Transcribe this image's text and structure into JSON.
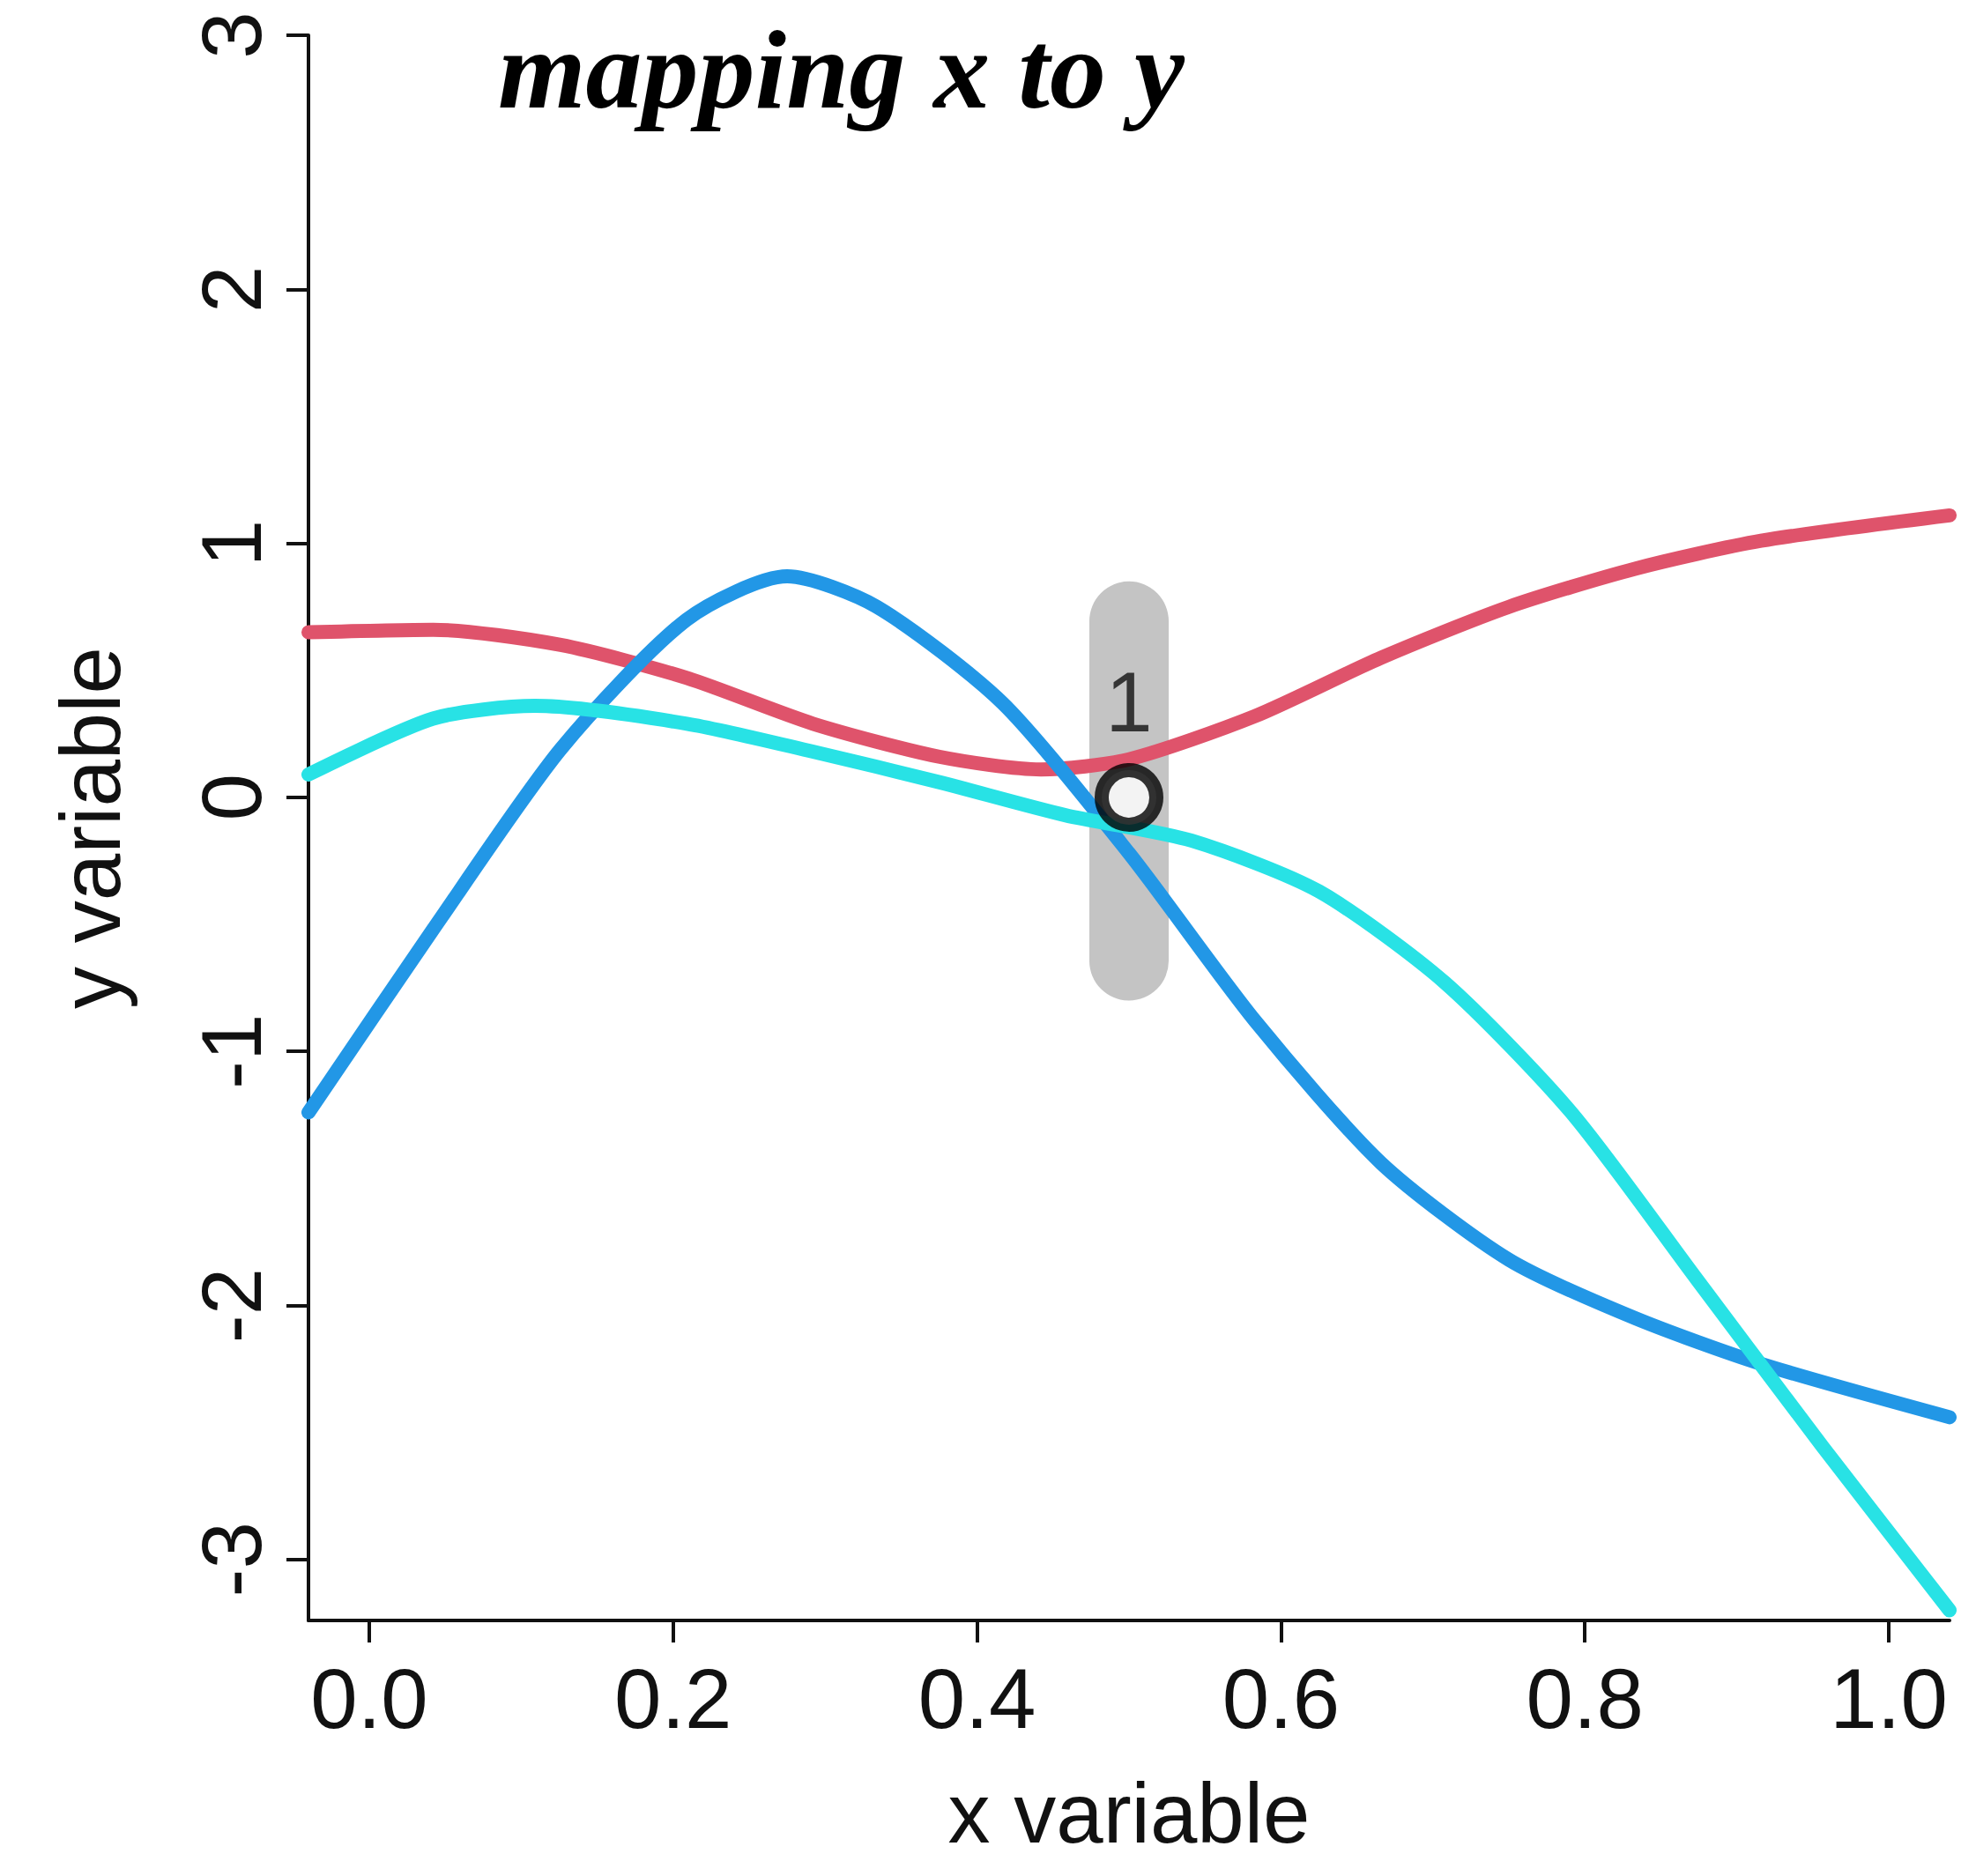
{
  "chart_data": {
    "type": "line",
    "title": "mapping x to y",
    "xlabel": "x variable",
    "ylabel": "y variable",
    "xlim": [
      -0.04,
      1.04
    ],
    "ylim": [
      -3.24,
      3
    ],
    "xticks": [
      {
        "value": 0,
        "label": "0.0"
      },
      {
        "value": 0.2,
        "label": "0.2"
      },
      {
        "value": 0.4,
        "label": "0.4"
      },
      {
        "value": 0.6,
        "label": "0.6"
      },
      {
        "value": 0.8,
        "label": "0.8"
      },
      {
        "value": 1,
        "label": "1.0"
      }
    ],
    "yticks": [
      -3,
      -2,
      -1,
      0,
      1,
      2,
      3
    ],
    "grid": false,
    "marker": "none",
    "line_style": "solid",
    "series": [
      {
        "color": "#df536b",
        "x": [
          -0.04,
          0.042,
          0.126,
          0.209,
          0.292,
          0.375,
          0.442,
          0.5,
          0.583,
          0.666,
          0.75,
          0.833,
          0.916,
          1.04
        ],
        "values": [
          0.65,
          0.66,
          0.6,
          0.47,
          0.29,
          0.16,
          0.11,
          0.15,
          0.32,
          0.55,
          0.75,
          0.9,
          1.01,
          1.11
        ]
      },
      {
        "color": "#2297e6",
        "x": [
          -0.04,
          0.042,
          0.126,
          0.209,
          0.275,
          0.334,
          0.417,
          0.5,
          0.583,
          0.666,
          0.75,
          0.833,
          0.916,
          1.04
        ],
        "values": [
          -1.24,
          -0.52,
          0.19,
          0.7,
          0.87,
          0.75,
          0.37,
          -0.22,
          -0.88,
          -1.44,
          -1.82,
          -2.05,
          -2.23,
          -2.44
        ]
      },
      {
        "color": "#28e2e5",
        "x": [
          -0.04,
          0.042,
          0.109,
          0.209,
          0.292,
          0.375,
          0.458,
          0.541,
          0.625,
          0.708,
          0.791,
          0.874,
          0.957,
          1.04
        ],
        "values": [
          0.09,
          0.31,
          0.36,
          0.29,
          0.18,
          0.06,
          -0.07,
          -0.17,
          -0.37,
          -0.73,
          -1.24,
          -1.9,
          -2.56,
          -3.2
        ]
      },
      {
        "type": "bar",
        "color": "#bebebe",
        "x": [
          0.5
        ],
        "values": [
          1.65
        ],
        "base": [
          -0.8
        ]
      },
      {
        "type": "scatter",
        "color": "#000000",
        "marker": "circle",
        "x": [
          0.5
        ],
        "values": [
          0
        ]
      }
    ],
    "annotations": [
      {
        "text": "1",
        "x": 0.5,
        "y": 0
      }
    ]
  }
}
